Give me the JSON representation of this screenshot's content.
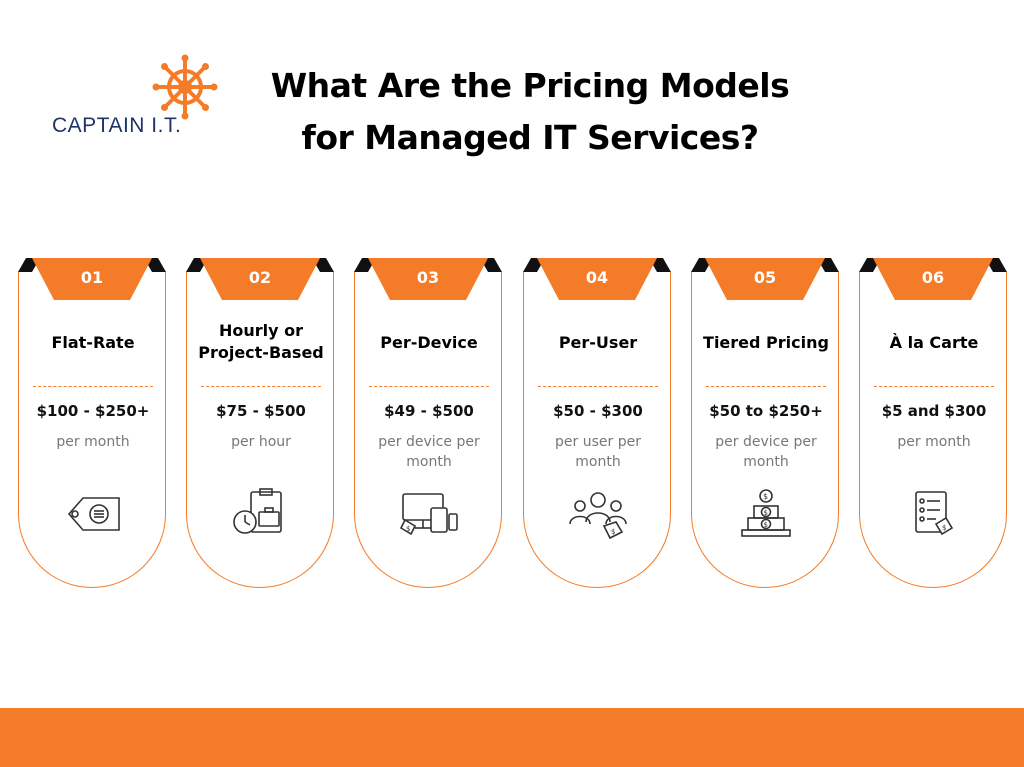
{
  "brand": {
    "name": "CAPTAIN I.T.",
    "accent": "#f47b28",
    "navy": "#1f3568"
  },
  "title": {
    "line1": "What Are the Pricing Models",
    "line2": "for Managed IT Services?"
  },
  "cards": [
    {
      "number": "01",
      "title": "Flat-Rate",
      "price": "$100 - $250+",
      "unit": "per month",
      "icon": "price-tag-icon"
    },
    {
      "number": "02",
      "title": "Hourly or Project-Based",
      "price": "$75 - $500",
      "unit": "per hour",
      "icon": "clock-briefcase-icon"
    },
    {
      "number": "03",
      "title": "Per-Device",
      "price": "$49 - $500",
      "unit": "per device per month",
      "icon": "devices-icon"
    },
    {
      "number": "04",
      "title": "Per-User",
      "price": "$50 - $300",
      "unit": "per user per month",
      "icon": "users-tag-icon"
    },
    {
      "number": "05",
      "title": "Tiered Pricing",
      "price": "$50 to $250+",
      "unit": "per device per month",
      "icon": "tiered-coins-icon"
    },
    {
      "number": "06",
      "title": "À la Carte",
      "price": "$5 and $300",
      "unit": "per month",
      "icon": "checklist-tag-icon"
    }
  ]
}
